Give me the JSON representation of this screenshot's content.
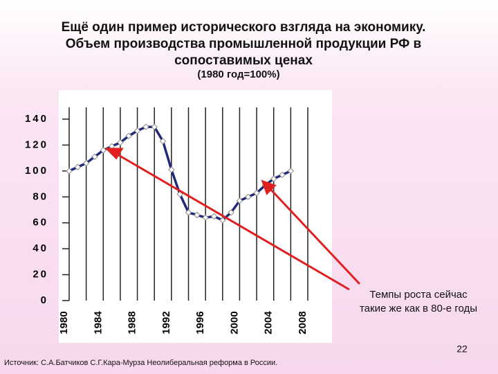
{
  "chart_data": {
    "type": "line",
    "title": [
      "Ещё один пример исторического взгляда на экономику.",
      "Объем производства промышленной продукции РФ в",
      "сопоставимых ценах"
    ],
    "subtitle": "(1980 год=100%)",
    "x": [
      1980,
      1981,
      1982,
      1983,
      1984,
      1985,
      1986,
      1987,
      1988,
      1989,
      1990,
      1991,
      1992,
      1993,
      1994,
      1995,
      1996,
      1997,
      1998,
      1999,
      2000,
      2001,
      2002,
      2003,
      2004,
      2005,
      2006
    ],
    "series": [
      {
        "color": "#1f2a7a",
        "values": [
          100,
          103,
          106,
          111,
          116,
          119,
          122,
          127,
          131,
          134,
          134,
          123,
          101,
          82,
          68,
          66,
          64,
          65,
          62,
          68,
          77,
          80,
          83,
          89,
          94,
          97,
          100
        ]
      }
    ],
    "xlim": [
      1980,
      2008
    ],
    "xticks": [
      1980,
      1984,
      1988,
      1992,
      1996,
      2000,
      2004,
      2008
    ],
    "ylim": [
      0,
      140
    ],
    "yticks": [
      0,
      20,
      40,
      60,
      80,
      100,
      120,
      140
    ],
    "annotation": [
      "Темпы роста сейчас",
      "такие же как в 80-е годы"
    ],
    "page_number": "22",
    "source": "Источник: С.А.Батчиков С.Г.Кара-Мурза Неолиберальная реформа в России."
  }
}
